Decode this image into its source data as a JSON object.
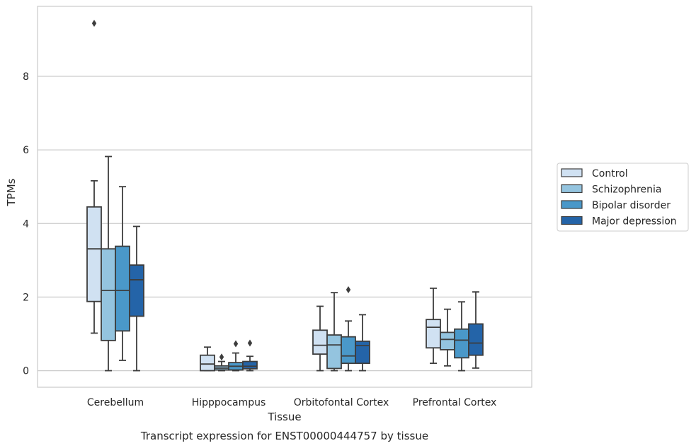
{
  "caption": "Transcript expression for ENST00000444757 by tissue",
  "chart_data": {
    "type": "box",
    "xlabel": "Tissue",
    "ylabel": "TPMs",
    "ylim": [
      -0.45,
      9.9
    ],
    "yticks": [
      0,
      2,
      4,
      6,
      8
    ],
    "grid": "horizontal",
    "legend_position": "right",
    "categories": [
      "Cerebellum",
      "Hipppocampus",
      "Orbitofontal Cortex",
      "Prefrontal Cortex"
    ],
    "series": [
      {
        "name": "Control",
        "color": "#d0e1f2",
        "boxes": [
          {
            "whislo": 1.02,
            "q1": 1.88,
            "med": 3.31,
            "q3": 4.45,
            "whishi": 5.16,
            "fliers": [
              9.44
            ]
          },
          {
            "whislo": 0.0,
            "q1": 0.0,
            "med": 0.18,
            "q3": 0.42,
            "whishi": 0.64,
            "fliers": []
          },
          {
            "whislo": 0.0,
            "q1": 0.45,
            "med": 0.69,
            "q3": 1.1,
            "whishi": 1.75,
            "fliers": []
          },
          {
            "whislo": 0.2,
            "q1": 0.62,
            "med": 1.18,
            "q3": 1.39,
            "whishi": 2.24,
            "fliers": []
          }
        ]
      },
      {
        "name": "Schizophrenia",
        "color": "#94c4df",
        "boxes": [
          {
            "whislo": 0.0,
            "q1": 0.82,
            "med": 2.18,
            "q3": 3.31,
            "whishi": 5.82,
            "fliers": []
          },
          {
            "whislo": 0.0,
            "q1": 0.02,
            "med": 0.07,
            "q3": 0.13,
            "whishi": 0.25,
            "fliers": [
              0.37
            ]
          },
          {
            "whislo": 0.0,
            "q1": 0.06,
            "med": 0.7,
            "q3": 0.97,
            "whishi": 2.12,
            "fliers": []
          },
          {
            "whislo": 0.13,
            "q1": 0.57,
            "med": 0.85,
            "q3": 1.04,
            "whishi": 1.67,
            "fliers": []
          }
        ]
      },
      {
        "name": "Bipolar disorder",
        "color": "#4a98c9",
        "boxes": [
          {
            "whislo": 0.28,
            "q1": 1.08,
            "med": 2.18,
            "q3": 3.38,
            "whishi": 5.0,
            "fliers": []
          },
          {
            "whislo": 0.0,
            "q1": 0.02,
            "med": 0.12,
            "q3": 0.22,
            "whishi": 0.48,
            "fliers": [
              0.73
            ]
          },
          {
            "whislo": 0.0,
            "q1": 0.2,
            "med": 0.4,
            "q3": 0.92,
            "whishi": 1.35,
            "fliers": [
              2.2
            ]
          },
          {
            "whislo": 0.0,
            "q1": 0.35,
            "med": 0.83,
            "q3": 1.13,
            "whishi": 1.87,
            "fliers": []
          }
        ]
      },
      {
        "name": "Major depression",
        "color": "#2464a8",
        "boxes": [
          {
            "whislo": 0.0,
            "q1": 1.48,
            "med": 2.47,
            "q3": 2.87,
            "whishi": 3.92,
            "fliers": []
          },
          {
            "whislo": 0.0,
            "q1": 0.05,
            "med": 0.12,
            "q3": 0.25,
            "whishi": 0.39,
            "fliers": [
              0.75
            ]
          },
          {
            "whislo": 0.0,
            "q1": 0.2,
            "med": 0.68,
            "q3": 0.8,
            "whishi": 1.52,
            "fliers": []
          },
          {
            "whislo": 0.07,
            "q1": 0.42,
            "med": 0.75,
            "q3": 1.27,
            "whishi": 2.14,
            "fliers": []
          }
        ]
      }
    ]
  }
}
